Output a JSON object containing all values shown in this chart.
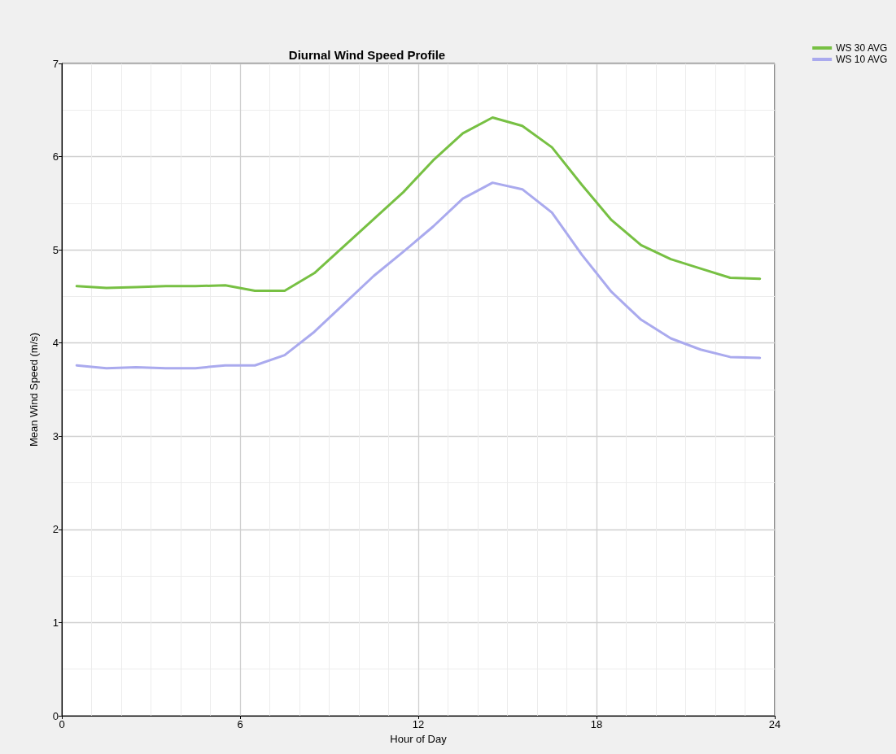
{
  "chart_data": {
    "type": "line",
    "title": "Diurnal Wind Speed Profile",
    "xlabel": "Hour of Day",
    "ylabel": "Mean Wind Speed (m/s)",
    "x": [
      0.5,
      1.5,
      2.5,
      3.5,
      4.5,
      5.5,
      6.5,
      7.5,
      8.5,
      9.5,
      10.5,
      11.5,
      12.5,
      13.5,
      14.5,
      15.5,
      16.5,
      17.5,
      18.5,
      19.5,
      20.5,
      21.5,
      22.5,
      23.5
    ],
    "series": [
      {
        "name": "WS 30 AVG",
        "color": "#77c043",
        "values": [
          4.61,
          4.59,
          4.6,
          4.61,
          4.61,
          4.62,
          4.56,
          4.56,
          4.75,
          5.04,
          5.33,
          5.62,
          5.96,
          6.25,
          6.42,
          6.33,
          6.1,
          5.7,
          5.32,
          5.05,
          4.9,
          4.8,
          4.7,
          4.69
        ]
      },
      {
        "name": "WS 10 AVG",
        "color": "#aaaaee",
        "values": [
          3.76,
          3.73,
          3.74,
          3.73,
          3.73,
          3.76,
          3.76,
          3.87,
          4.12,
          4.42,
          4.72,
          4.98,
          5.25,
          5.55,
          5.72,
          5.65,
          5.4,
          4.95,
          4.55,
          4.25,
          4.05,
          3.93,
          3.85,
          3.84
        ]
      }
    ],
    "xlim": [
      0,
      24
    ],
    "xticks": [
      0,
      6,
      12,
      18,
      24
    ],
    "ylim": [
      0,
      7
    ],
    "yticks": [
      0,
      1,
      2,
      3,
      4,
      5,
      6,
      7
    ],
    "grid": true,
    "legend": "top right",
    "marker": "none",
    "line_style": "solid"
  }
}
